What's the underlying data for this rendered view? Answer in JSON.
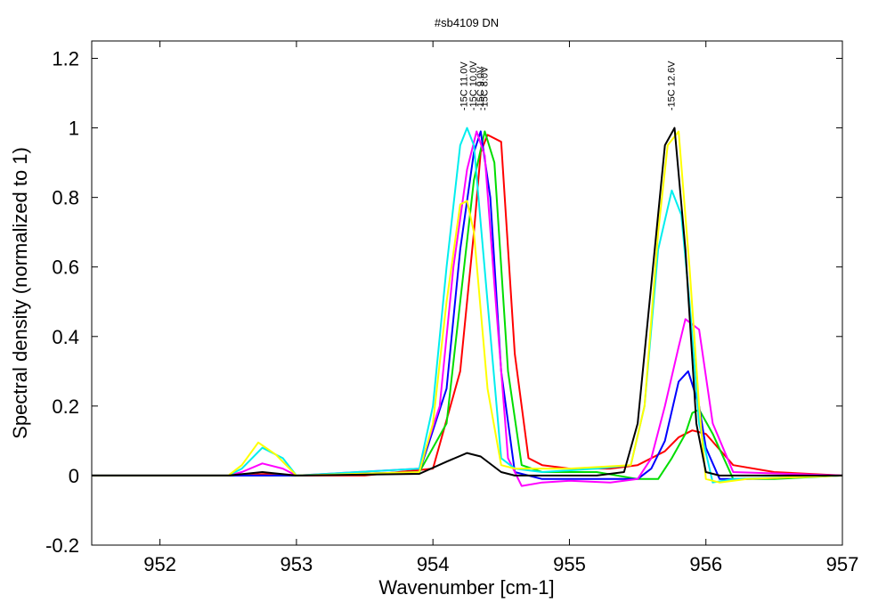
{
  "chart_data": {
    "type": "line",
    "title": "#sb4109 DN",
    "xlabel": "Wavenumber [cm-1]",
    "ylabel": "Spectral density (normalized to 1)",
    "xlim": [
      951.5,
      957
    ],
    "ylim": [
      -0.2,
      1.25
    ],
    "x_ticks": [
      952,
      953,
      954,
      955,
      956,
      957
    ],
    "y_ticks": [
      -0.2,
      0,
      0.2,
      0.4,
      0.6,
      0.8,
      1,
      1.2
    ],
    "x_tick_labels": [
      "952",
      "953",
      "954",
      "955",
      "956",
      "957"
    ],
    "y_tick_labels": [
      "-0.2",
      "0",
      "0.2",
      "0.4",
      "0.6",
      "0.8",
      "1",
      "1.2"
    ],
    "grid": false,
    "annotations": [
      {
        "text": "-15C 11.0V",
        "x": 954.25,
        "y": 1.05
      },
      {
        "text": "-15C 10.0V",
        "x": 954.32,
        "y": 1.05
      },
      {
        "text": "-15C 9.0V",
        "x": 954.37,
        "y": 1.05
      },
      {
        "text": "-15C 8.0V",
        "x": 954.4,
        "y": 1.05
      },
      {
        "text": "-15C 12.6V",
        "x": 955.77,
        "y": 1.05
      }
    ],
    "series": [
      {
        "color": "#ff0000",
        "x": [
          951.5,
          952.5,
          952.8,
          953.0,
          953.5,
          954.0,
          954.2,
          954.3,
          954.35,
          954.4,
          954.5,
          954.6,
          954.7,
          954.8,
          955.0,
          955.3,
          955.5,
          955.7,
          955.8,
          955.9,
          956.0,
          956.2,
          956.5,
          957.0
        ],
        "y": [
          0,
          0,
          0.005,
          0,
          0,
          0.02,
          0.3,
          0.7,
          0.93,
          0.98,
          0.96,
          0.35,
          0.05,
          0.03,
          0.02,
          0.02,
          0.03,
          0.07,
          0.11,
          0.13,
          0.12,
          0.03,
          0.01,
          0
        ]
      },
      {
        "color": "#00dd00",
        "x": [
          951.5,
          952.5,
          953.0,
          953.9,
          954.1,
          954.2,
          954.3,
          954.38,
          954.45,
          954.55,
          954.65,
          954.8,
          955.2,
          955.5,
          955.65,
          955.75,
          955.85,
          955.9,
          955.95,
          956.05,
          956.2,
          956.5,
          957.0
        ],
        "y": [
          0,
          0,
          0,
          0.01,
          0.15,
          0.5,
          0.85,
          0.99,
          0.9,
          0.3,
          0.03,
          0.01,
          0.01,
          -0.01,
          -0.01,
          0.05,
          0.12,
          0.18,
          0.19,
          0.12,
          -0.01,
          -0.01,
          0
        ]
      },
      {
        "color": "#0000ff",
        "x": [
          951.5,
          952.5,
          953.0,
          953.9,
          954.1,
          954.2,
          954.3,
          954.35,
          954.42,
          954.5,
          954.6,
          954.8,
          955.2,
          955.5,
          955.6,
          955.7,
          955.8,
          955.87,
          955.95,
          956.0,
          956.1,
          956.3,
          957.0
        ],
        "y": [
          0,
          0,
          0,
          0.01,
          0.25,
          0.65,
          0.93,
          0.99,
          0.8,
          0.3,
          0.01,
          -0.01,
          -0.01,
          -0.01,
          0.02,
          0.1,
          0.27,
          0.3,
          0.2,
          0.08,
          -0.01,
          -0.01,
          0
        ]
      },
      {
        "color": "#ff00ff",
        "x": [
          951.5,
          952.5,
          952.6,
          952.75,
          952.9,
          953.0,
          953.9,
          954.05,
          954.15,
          954.25,
          954.32,
          954.38,
          954.45,
          954.55,
          954.65,
          954.8,
          955.0,
          955.3,
          955.5,
          955.6,
          955.7,
          955.8,
          955.85,
          955.95,
          956.05,
          956.2,
          957.0
        ],
        "y": [
          0,
          0,
          0.01,
          0.035,
          0.02,
          0,
          0.02,
          0.2,
          0.6,
          0.88,
          0.99,
          0.92,
          0.55,
          0.05,
          -0.03,
          -0.02,
          -0.015,
          -0.02,
          -0.01,
          0.05,
          0.2,
          0.37,
          0.45,
          0.42,
          0.15,
          0.01,
          0
        ]
      },
      {
        "color": "#00eeee",
        "x": [
          951.5,
          952.5,
          952.6,
          952.75,
          952.9,
          953.0,
          953.9,
          954.0,
          954.1,
          954.2,
          954.25,
          954.3,
          954.4,
          954.5,
          954.6,
          954.8,
          955.2,
          955.45,
          955.55,
          955.65,
          955.75,
          955.82,
          955.88,
          955.95,
          956.05,
          956.2,
          957.0
        ],
        "y": [
          0,
          0,
          0.02,
          0.08,
          0.05,
          0,
          0.02,
          0.2,
          0.6,
          0.95,
          1.0,
          0.95,
          0.5,
          0.05,
          0.02,
          0.01,
          0.02,
          0.03,
          0.2,
          0.65,
          0.82,
          0.75,
          0.5,
          0.15,
          -0.02,
          -0.01,
          0
        ]
      },
      {
        "color": "#ffff00",
        "x": [
          951.5,
          952.5,
          952.6,
          952.72,
          952.85,
          953.0,
          953.9,
          954.0,
          954.1,
          954.2,
          954.25,
          954.3,
          954.4,
          954.5,
          954.6,
          955.0,
          955.45,
          955.55,
          955.65,
          955.72,
          955.8,
          955.88,
          955.95,
          956.0,
          956.1,
          956.3,
          957.0
        ],
        "y": [
          0,
          0,
          0.03,
          0.095,
          0.06,
          0,
          0.01,
          0.15,
          0.5,
          0.78,
          0.79,
          0.7,
          0.25,
          0.03,
          0.02,
          0.02,
          0.03,
          0.2,
          0.7,
          0.95,
          0.99,
          0.6,
          0.2,
          -0.01,
          -0.02,
          -0.01,
          0
        ]
      },
      {
        "color": "#000000",
        "x": [
          951.5,
          952.5,
          952.75,
          953.0,
          953.9,
          954.1,
          954.25,
          954.35,
          954.5,
          954.6,
          955.2,
          955.4,
          955.5,
          955.6,
          955.7,
          955.77,
          955.85,
          955.93,
          956.0,
          956.1,
          956.3,
          957.0
        ],
        "y": [
          0,
          0,
          0.01,
          0,
          0.005,
          0.04,
          0.065,
          0.055,
          0.01,
          0,
          0,
          0.01,
          0.15,
          0.55,
          0.95,
          1.0,
          0.65,
          0.15,
          0.01,
          0,
          0,
          0
        ]
      }
    ]
  }
}
